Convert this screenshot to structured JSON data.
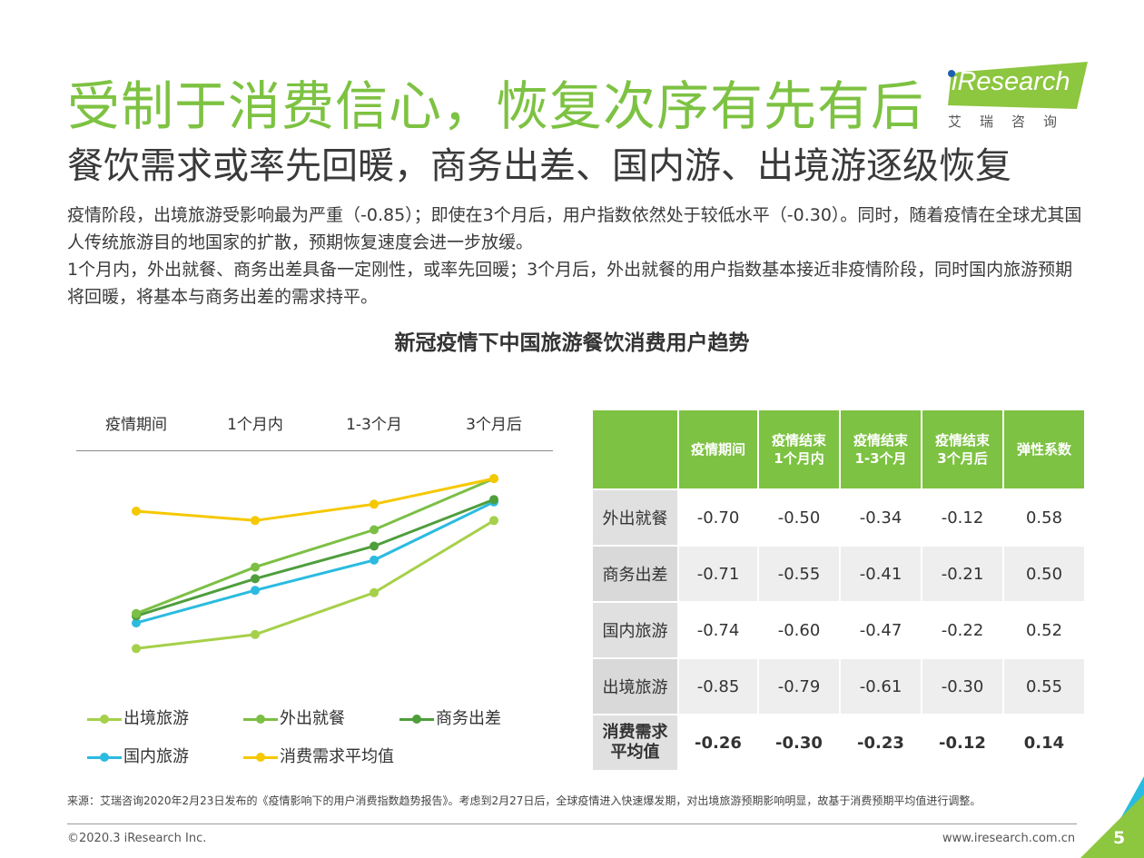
{
  "header": {
    "title": "受制于消费信心，恢复次序有先有后",
    "subtitle": "餐饮需求或率先回暖，商务出差、国内游、出境游逐级恢复"
  },
  "logo": {
    "text": "iResearch",
    "cn": "艾瑞咨询",
    "color": "#8dc63f"
  },
  "paragraphs": {
    "p1": "疫情阶段，出境旅游受影响最为严重（-0.85）；即使在3个月后，用户指数依然处于较低水平（-0.30）。同时，随着疫情在全球尤其国人传统旅游目的地国家的扩散，预期恢复速度会进一步放缓。",
    "p2": "1个月内，外出就餐、商务出差具备一定刚性，或率先回暖；3个月后，外出就餐的用户指数基本接近非疫情阶段，同时国内旅游预期将回暖，将基本与商务出差的需求持平。"
  },
  "chart_data": {
    "type": "line",
    "title": "新冠疫情下中国旅游餐饮消费用户趋势",
    "categories": [
      "疫情期间",
      "1个月内",
      "1-3个月",
      "3个月后"
    ],
    "series": [
      {
        "name": "出境旅游",
        "values": [
          -0.85,
          -0.79,
          -0.61,
          -0.3
        ],
        "color": "#a6d04a"
      },
      {
        "name": "外出就餐",
        "values": [
          -0.7,
          -0.5,
          -0.34,
          -0.12
        ],
        "color": "#7cbf45"
      },
      {
        "name": "商务出差",
        "values": [
          -0.71,
          -0.55,
          -0.41,
          -0.21
        ],
        "color": "#4e9e3c"
      },
      {
        "name": "国内旅游",
        "values": [
          -0.74,
          -0.6,
          -0.47,
          -0.22
        ],
        "color": "#2bbbe0"
      },
      {
        "name": "消费需求平均值",
        "values": [
          -0.26,
          -0.3,
          -0.23,
          -0.12
        ],
        "color": "#f5c800"
      }
    ],
    "legend_position": "bottom",
    "grid": false
  },
  "table": {
    "headers": [
      "疫情期间",
      "疫情结束\n1个月内",
      "疫情结束\n1-3个月",
      "疫情结束\n3个月后",
      "弹性系数"
    ],
    "rows": [
      {
        "label": "外出就餐",
        "cells": [
          "-0.70",
          "-0.50",
          "-0.34",
          "-0.12",
          "0.58"
        ]
      },
      {
        "label": "商务出差",
        "cells": [
          "-0.71",
          "-0.55",
          "-0.41",
          "-0.21",
          "0.50"
        ]
      },
      {
        "label": "国内旅游",
        "cells": [
          "-0.74",
          "-0.60",
          "-0.47",
          "-0.22",
          "0.52"
        ]
      },
      {
        "label": "出境旅游",
        "cells": [
          "-0.85",
          "-0.79",
          "-0.61",
          "-0.30",
          "0.55"
        ]
      },
      {
        "label": "消费需求\n平均值",
        "cells": [
          "-0.26",
          "-0.30",
          "-0.23",
          "-0.12",
          "0.14"
        ]
      }
    ]
  },
  "footer": {
    "source": "来源：艾瑞咨询2020年2月23日发布的《疫情影响下的用户消费指数趋势报告》。考虑到2月27日后，全球疫情进入快速爆发期，对出境旅游预期影响明显，故基于消费预期平均值进行调整。",
    "copyright": "©2020.3 iResearch Inc.",
    "website": "www.iresearch.com.cn",
    "page_number": "5"
  }
}
